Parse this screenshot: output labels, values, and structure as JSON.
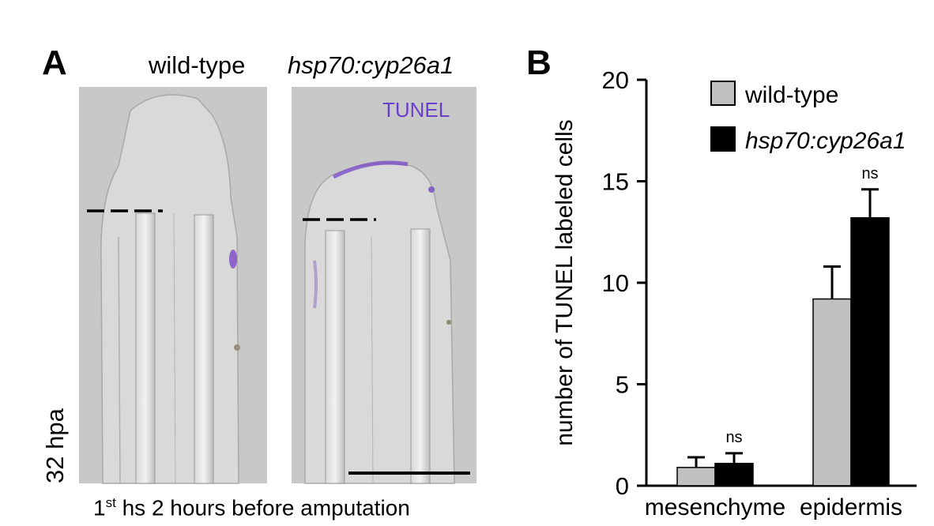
{
  "panel_a": {
    "letter": "A",
    "col1_label": "wild-type",
    "col2_label": "hsp70:cyp26a1",
    "stain_label": "TUNEL",
    "time_label": "32 hpa",
    "caption_sup": "st",
    "caption_pre": "1",
    "caption_rest": " hs 2 hours before amputation",
    "colors": {
      "background": "#c8c8c8",
      "tunel": "#6a3fcc"
    }
  },
  "panel_b": {
    "letter": "B"
  },
  "chart_data": {
    "type": "bar",
    "title": "",
    "xlabel": "",
    "ylabel": "number of TUNEL labeled cells",
    "ylim": [
      0,
      20
    ],
    "yticks": [
      "0",
      "5",
      "10",
      "15",
      "20"
    ],
    "categories": [
      "mesenchyme",
      "epidermis"
    ],
    "series": [
      {
        "name": "wild-type",
        "color": "#c0c0c0",
        "values": [
          0.9,
          9.2
        ],
        "errors": [
          0.5,
          1.6
        ]
      },
      {
        "name": "hsp70:cyp26a1",
        "color": "#000000",
        "values": [
          1.1,
          13.2
        ],
        "errors": [
          0.5,
          1.4
        ]
      }
    ],
    "annotations": [
      "ns",
      "ns"
    ],
    "legend_position": "top-right"
  }
}
